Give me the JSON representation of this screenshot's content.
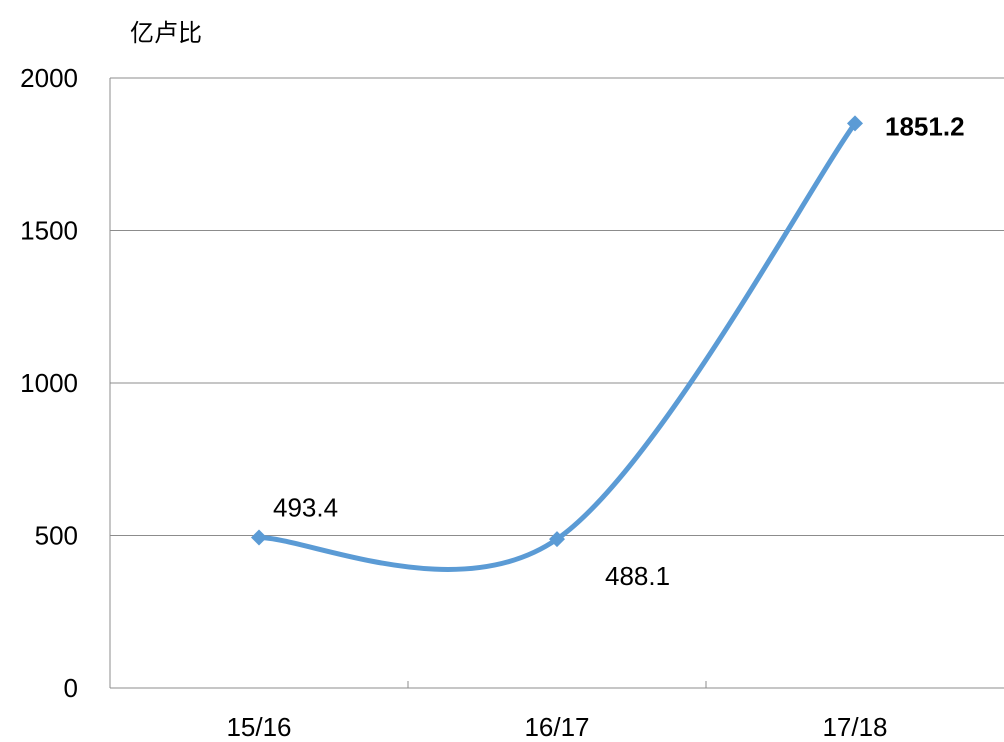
{
  "chart_data": {
    "type": "line",
    "ylabel": "亿卢比",
    "categories": [
      "15/16",
      "16/17",
      "17/18"
    ],
    "series": [
      {
        "values": [
          493.4,
          488.1,
          1851.2
        ]
      }
    ],
    "data_labels": [
      "493.4",
      "488.1",
      "1851.2"
    ],
    "highlight_label_color": "#ff0000",
    "line_color": "#5b9bd5",
    "marker": "diamond",
    "smooth": true,
    "ylim": [
      0,
      2000
    ],
    "yticks": [
      "0",
      "500",
      "1000",
      "1500",
      "2000"
    ],
    "grid": true
  }
}
